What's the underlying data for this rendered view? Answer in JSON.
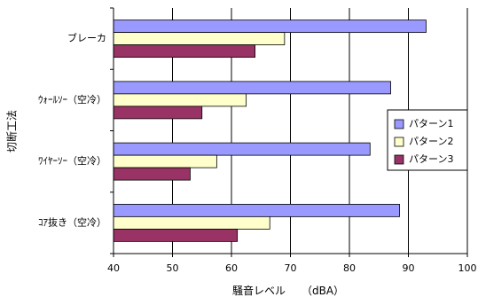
{
  "chart_data": {
    "type": "bar",
    "orientation": "horizontal",
    "categories": [
      "ブレーカ",
      "ｳｫｰﾙｿｰ（空冷）",
      "ﾜｲﾔｰｿｰ（空冷）",
      "ｺｱ抜き（空冷）"
    ],
    "series": [
      {
        "name": "パターン1",
        "values": [
          93,
          87,
          83.5,
          88.5
        ],
        "color": "#9999ff"
      },
      {
        "name": "パターン2",
        "values": [
          69,
          62.5,
          57.5,
          66.5
        ],
        "color": "#ffffcc"
      },
      {
        "name": "パターン3",
        "values": [
          64,
          55,
          53,
          61
        ],
        "color": "#993366"
      }
    ],
    "x_ticks": [
      "40",
      "50",
      "60",
      "70",
      "80",
      "90",
      "100"
    ],
    "xlim": [
      40,
      100
    ],
    "xlabel": "騒音レベル　　（dBA）",
    "ylabel": "切断工法",
    "grid": "vertical",
    "legend_position": "right"
  }
}
